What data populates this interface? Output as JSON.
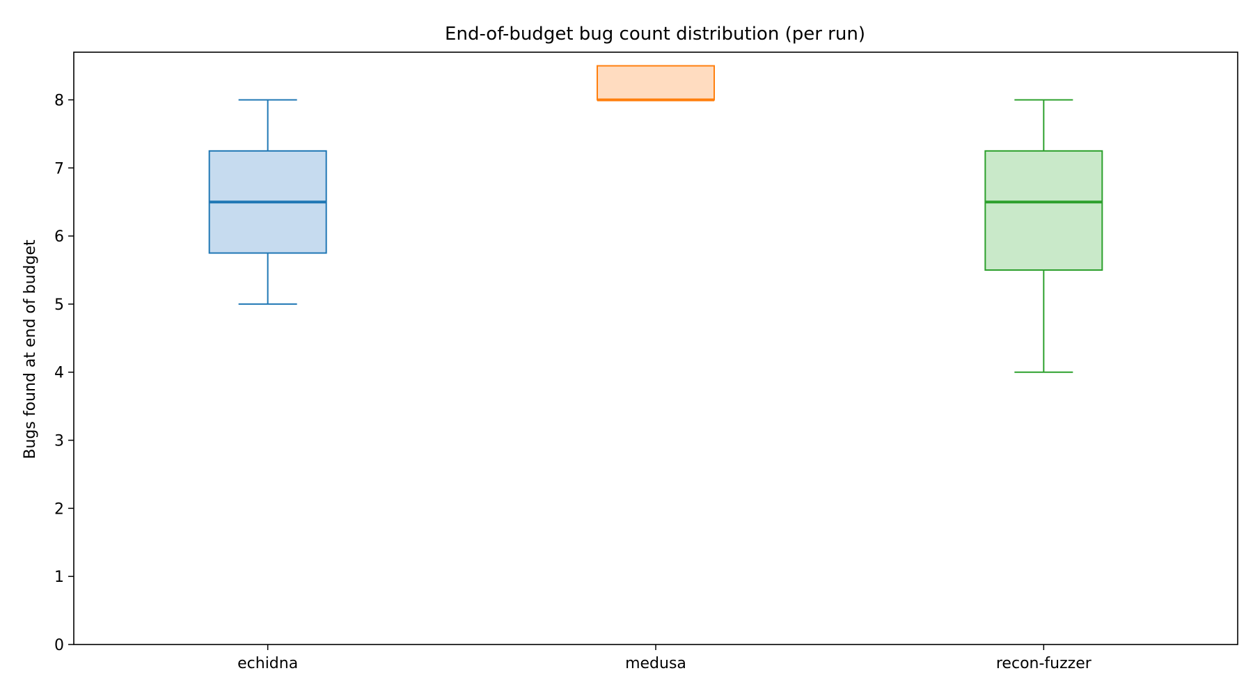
{
  "chart_data": {
    "type": "box",
    "title": "End-of-budget bug count distribution (per run)",
    "xlabel": "",
    "ylabel": "Bugs found at end of budget",
    "ylim": [
      0,
      8.7
    ],
    "yticks": [
      0,
      1,
      2,
      3,
      4,
      5,
      6,
      7,
      8
    ],
    "grid": false,
    "categories": [
      "echidna",
      "medusa",
      "recon-fuzzer"
    ],
    "boxes": [
      {
        "category": "echidna",
        "whisker_low": 5,
        "q1": 5.75,
        "median": 6.5,
        "q3": 7.25,
        "whisker_high": 8,
        "color": "#1f77b4",
        "fill": "#c6dbef"
      },
      {
        "category": "medusa",
        "whisker_low": 8,
        "q1": 8,
        "median": 8,
        "q3": 8.5,
        "whisker_high": 8.5,
        "color": "#ff7f0e",
        "fill": "#ffdcc0"
      },
      {
        "category": "recon-fuzzer",
        "whisker_low": 4,
        "q1": 5.5,
        "median": 6.5,
        "q3": 7.25,
        "whisker_high": 8,
        "color": "#2ca02c",
        "fill": "#c9e9c9"
      }
    ]
  }
}
